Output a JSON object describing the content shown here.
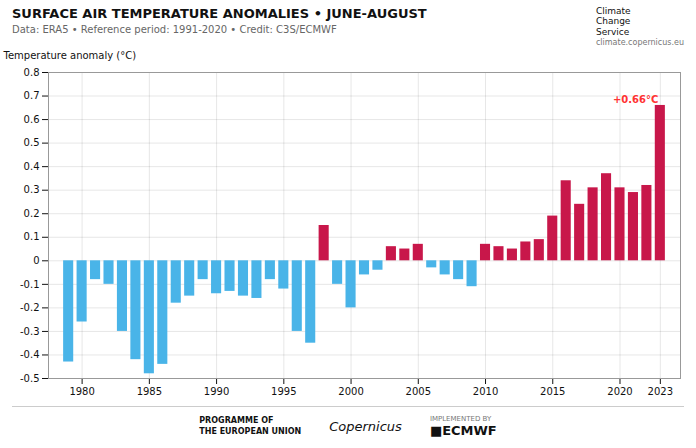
{
  "chart_data": {
    "type": "bar",
    "title": "SURFACE AIR TEMPERATURE ANOMALIES • JUNE-AUGUST",
    "subtitle": "Data: ERA5 • Reference period: 1991-2020 • Credit: C3S/ECMWF",
    "ylabel": "Temperature anomaly (°C)",
    "x": [
      1979,
      1980,
      1981,
      1982,
      1983,
      1984,
      1985,
      1986,
      1987,
      1988,
      1989,
      1990,
      1991,
      1992,
      1993,
      1994,
      1995,
      1996,
      1997,
      1998,
      1999,
      2000,
      2001,
      2002,
      2003,
      2004,
      2005,
      2006,
      2007,
      2008,
      2009,
      2010,
      2011,
      2012,
      2013,
      2014,
      2015,
      2016,
      2017,
      2018,
      2019,
      2020,
      2021,
      2022,
      2023
    ],
    "values": [
      -0.43,
      -0.26,
      -0.08,
      -0.1,
      -0.3,
      -0.42,
      -0.48,
      -0.44,
      -0.18,
      -0.15,
      -0.08,
      -0.14,
      -0.13,
      -0.15,
      -0.16,
      -0.08,
      -0.12,
      -0.3,
      -0.35,
      0.15,
      -0.1,
      -0.2,
      -0.06,
      -0.04,
      0.06,
      0.05,
      0.07,
      -0.03,
      -0.06,
      -0.08,
      -0.11,
      0.07,
      0.06,
      0.05,
      0.08,
      0.09,
      0.19,
      0.34,
      0.24,
      0.31,
      0.37,
      0.31,
      0.29,
      0.32,
      0.66
    ],
    "colors": [
      "#49b4e8",
      "#49b4e8",
      "#49b4e8",
      "#49b4e8",
      "#49b4e8",
      "#49b4e8",
      "#49b4e8",
      "#49b4e8",
      "#49b4e8",
      "#49b4e8",
      "#49b4e8",
      "#49b4e8",
      "#49b4e8",
      "#49b4e8",
      "#49b4e8",
      "#49b4e8",
      "#49b4e8",
      "#49b4e8",
      "#49b4e8",
      "#c8174a",
      "#49b4e8",
      "#49b4e8",
      "#49b4e8",
      "#49b4e8",
      "#c8174a",
      "#c8174a",
      "#c8174a",
      "#49b4e8",
      "#49b4e8",
      "#49b4e8",
      "#49b4e8",
      "#c8174a",
      "#c8174a",
      "#c8174a",
      "#c8174a",
      "#c8174a",
      "#c8174a",
      "#c8174a",
      "#c8174a",
      "#c8174a",
      "#c8174a",
      "#c8174a",
      "#c8174a",
      "#c8174a",
      "#c8174a"
    ],
    "xlim": [
      1977.5,
      2024.5
    ],
    "xticks": [
      1980,
      1985,
      1990,
      1995,
      2000,
      2005,
      2010,
      2015,
      2020,
      2023
    ],
    "ylim": [
      -0.5,
      0.8
    ],
    "yticks": [
      -0.5,
      -0.4,
      -0.3,
      -0.2,
      -0.1,
      0,
      0.1,
      0.2,
      0.3,
      0.4,
      0.5,
      0.6,
      0.7,
      0.8
    ],
    "grid": true,
    "annotations": [
      {
        "text": "+0.66°C",
        "x": 2023,
        "y": 0.66,
        "color": "#ff3333"
      }
    ],
    "credits": [
      "Climate\nChange\nService",
      "climate.copernicus.eu",
      "PROGRAMME OF",
      "THE EUROPEAN UNION",
      "Copernicus",
      "IMPLEMENTED BY",
      "■ECMWF"
    ]
  }
}
